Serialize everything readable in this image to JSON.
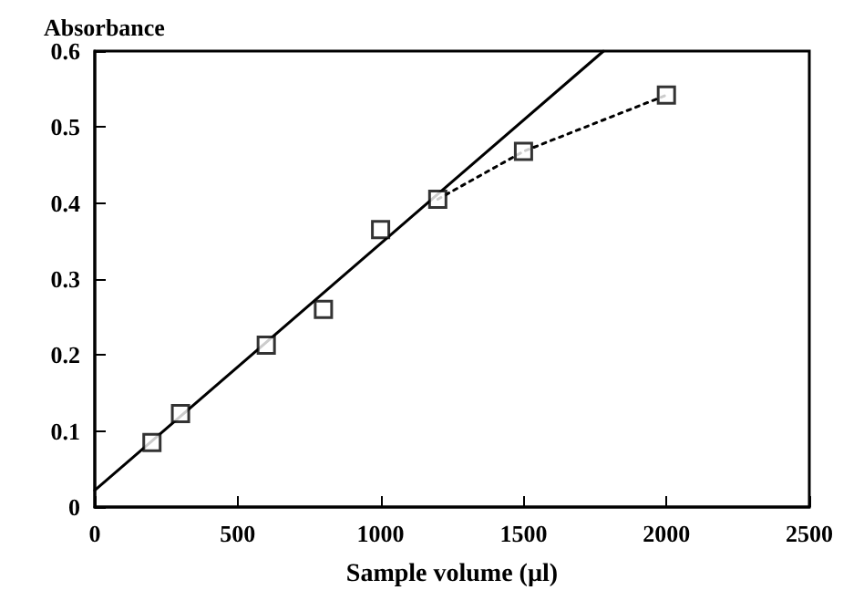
{
  "chart_data": {
    "type": "scatter",
    "ylabel": "Absorbance",
    "xlabel": "Sample volume (µl)",
    "xlim": [
      0,
      2500
    ],
    "xticks": [
      0,
      500,
      1000,
      1500,
      2000,
      2500
    ],
    "ylim": [
      0,
      0.6
    ],
    "yticks": [
      0,
      0.1,
      0.2,
      0.3,
      0.4,
      0.5,
      0.6
    ],
    "grid": false,
    "marker": "square",
    "series": [
      {
        "color": "#000000",
        "x": [
          200,
          300,
          600,
          800,
          1000,
          1200,
          1500,
          2000
        ],
        "values": [
          0.085,
          0.123,
          0.213,
          0.26,
          0.365,
          0.405,
          0.468,
          0.542
        ]
      },
      {
        "type": "line",
        "color": "#000000",
        "line_style": "solid",
        "marker": "none",
        "x": [
          0,
          1780
        ],
        "values": [
          0.022,
          0.6
        ]
      },
      {
        "type": "line",
        "color": "#000000",
        "line_style": "dotted",
        "marker": "none",
        "x": [
          1200,
          1500,
          2000
        ],
        "values": [
          0.405,
          0.468,
          0.542
        ]
      }
    ]
  }
}
